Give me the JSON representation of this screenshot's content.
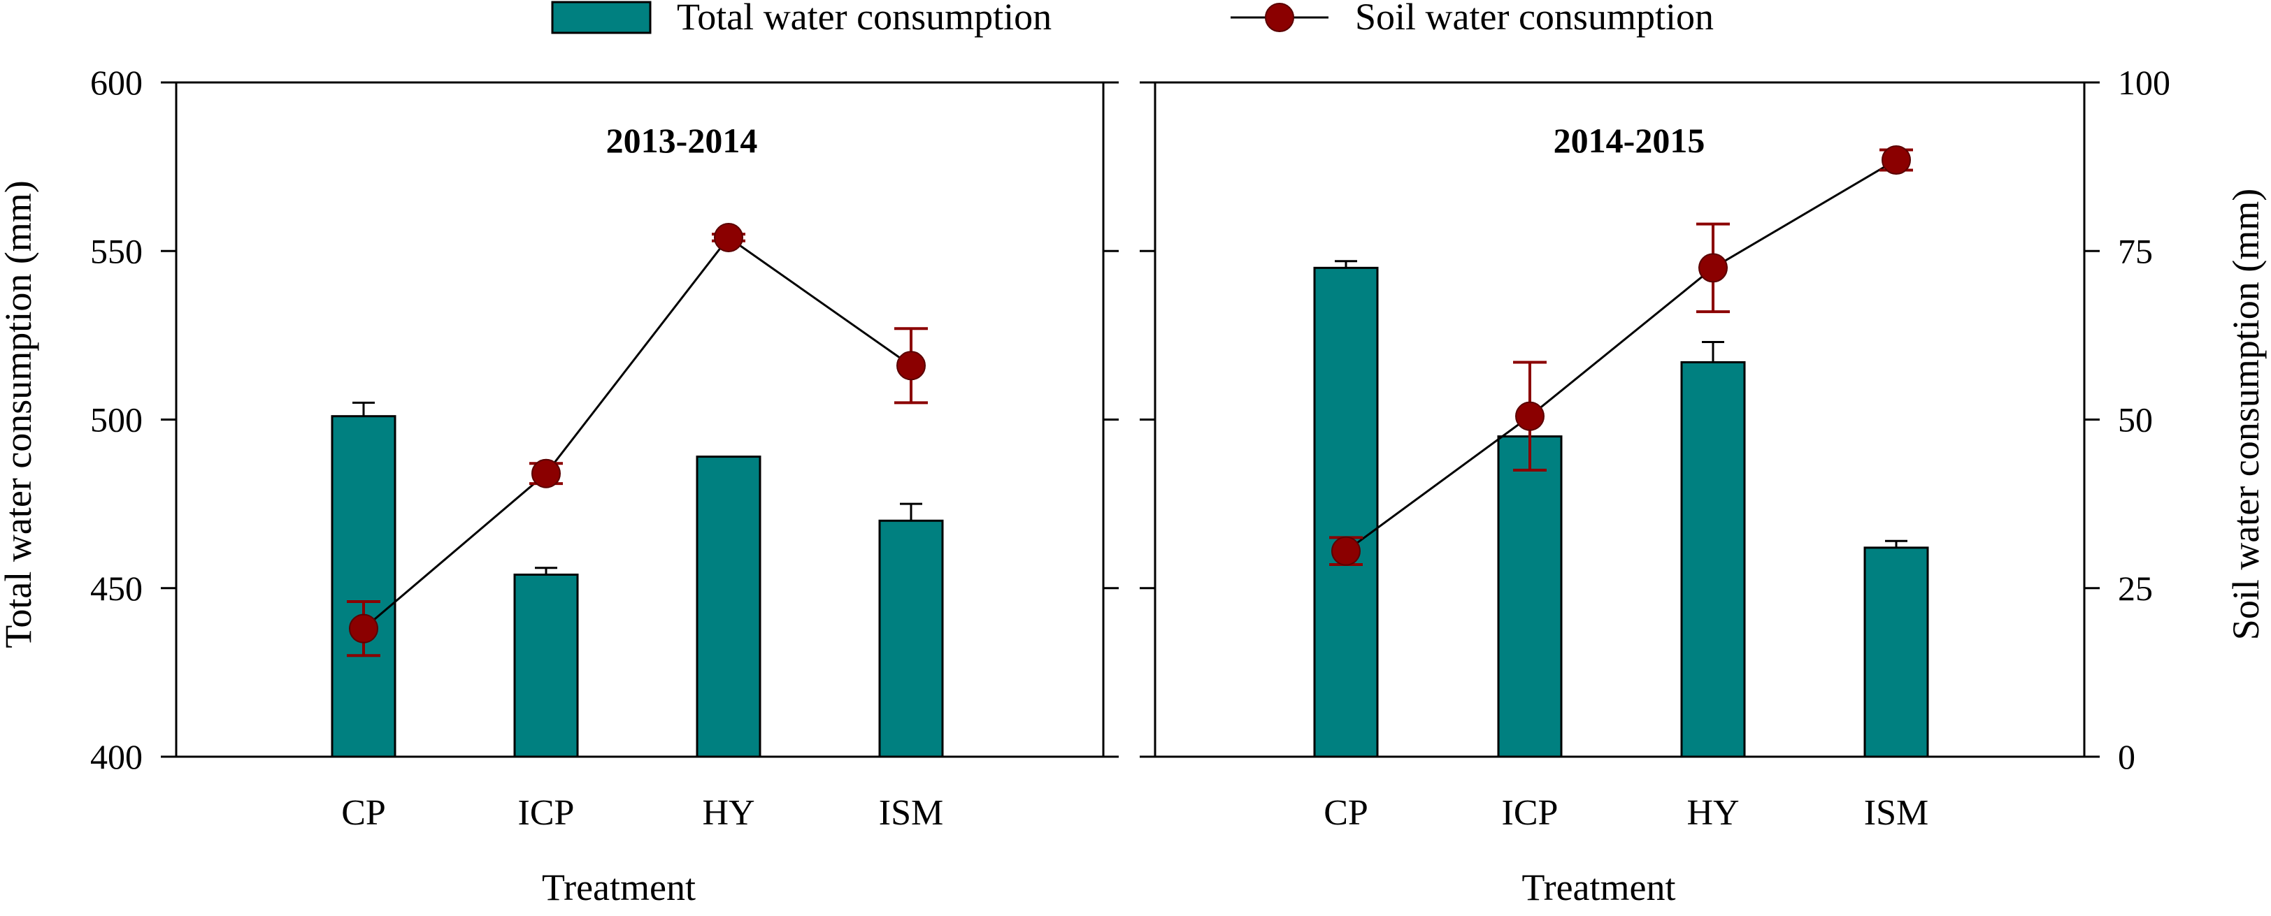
{
  "chart_data": {
    "type": "bar",
    "legend": {
      "bar_label": "Total water consumption",
      "line_label": "Soil water consumption",
      "placement": "top-center"
    },
    "colors": {
      "bar": "#008080",
      "line": "#000000",
      "marker": "#8B0000"
    },
    "categories": [
      "CP",
      "ICP",
      "HY",
      "ISM"
    ],
    "left_axis": {
      "label": "Total water consumption (mm)",
      "ylim": [
        400,
        600
      ],
      "ticks": [
        "400",
        "450",
        "500",
        "550",
        "600"
      ]
    },
    "right_axis": {
      "label": "Soil water consumption (mm)",
      "ylim": [
        0,
        100
      ],
      "ticks": [
        "0",
        "25",
        "50",
        "75",
        "100"
      ]
    },
    "xlabel": "Treatment",
    "panels": [
      {
        "title": "2013-2014",
        "total_water": [
          501,
          454,
          489,
          470
        ],
        "total_water_err": [
          4,
          2,
          0,
          5
        ],
        "soil_water": [
          19,
          42,
          77,
          58
        ],
        "soil_water_err": [
          4,
          1.5,
          0.5,
          5.5
        ]
      },
      {
        "title": "2014-2015",
        "total_water": [
          545,
          495,
          517,
          462
        ],
        "total_water_err": [
          2,
          0,
          6,
          2
        ],
        "soil_water": [
          30.5,
          50.5,
          72.5,
          88.5
        ],
        "soil_water_err": [
          2,
          8,
          6.5,
          1.5
        ]
      }
    ]
  }
}
